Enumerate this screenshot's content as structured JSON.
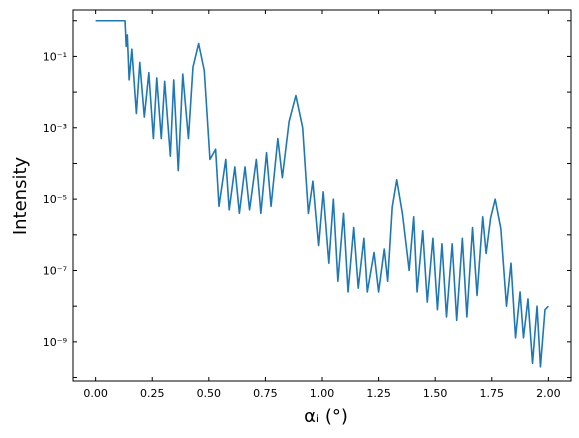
{
  "chart_data": {
    "type": "line",
    "x_label": "αᵢ (°)",
    "y_label": "Intensity",
    "x": [
      0,
      0.12,
      0.13,
      0.135,
      0.14,
      0.148,
      0.16,
      0.18,
      0.195,
      0.215,
      0.235,
      0.255,
      0.27,
      0.29,
      0.305,
      0.33,
      0.345,
      0.365,
      0.385,
      0.41,
      0.43,
      0.455,
      0.48,
      0.505,
      0.53,
      0.545,
      0.575,
      0.59,
      0.615,
      0.635,
      0.66,
      0.68,
      0.71,
      0.73,
      0.755,
      0.775,
      0.805,
      0.825,
      0.855,
      0.885,
      0.915,
      0.94,
      0.96,
      0.985,
      1.005,
      1.03,
      1.05,
      1.07,
      1.095,
      1.115,
      1.14,
      1.16,
      1.185,
      1.2,
      1.23,
      1.25,
      1.275,
      1.29,
      1.31,
      1.33,
      1.355,
      1.385,
      1.405,
      1.42,
      1.445,
      1.465,
      1.49,
      1.51,
      1.53,
      1.55,
      1.575,
      1.595,
      1.62,
      1.64,
      1.665,
      1.685,
      1.71,
      1.725,
      1.745,
      1.765,
      1.79,
      1.815,
      1.835,
      1.855,
      1.875,
      1.89,
      1.91,
      1.93,
      1.95,
      1.965,
      1.985,
      2.0
    ],
    "series": [
      {
        "color": "#1f77b4",
        "values": [
          1.0,
          1.0,
          1.0,
          0.19,
          0.4,
          0.022,
          0.16,
          0.0025,
          0.068,
          0.002,
          0.035,
          0.0005,
          0.025,
          0.0005,
          0.02,
          0.00016,
          0.022,
          6.3e-05,
          0.032,
          0.0005,
          0.05,
          0.23,
          0.04,
          0.00013,
          0.00025,
          6.3e-06,
          0.00013,
          5e-06,
          8e-05,
          4e-06,
          8e-05,
          5e-06,
          0.00013,
          4e-06,
          0.0002,
          6.3e-06,
          0.0005,
          4e-05,
          0.0015,
          0.008,
          0.001,
          4e-06,
          3.2e-05,
          5e-07,
          1.6e-05,
          1.6e-07,
          1e-05,
          5e-08,
          4e-06,
          2.5e-08,
          1.6e-06,
          3.2e-08,
          8e-07,
          2.5e-08,
          3.2e-07,
          2.5e-08,
          4e-07,
          5e-08,
          6e-06,
          3.5e-05,
          4e-06,
          1e-07,
          3.2e-06,
          2.5e-08,
          1.3e-06,
          1.3e-08,
          8e-07,
          8e-09,
          5.6e-07,
          5e-09,
          5.6e-07,
          4e-09,
          8e-07,
          5e-09,
          1.6e-06,
          2e-08,
          3.2e-06,
          3e-07,
          3e-06,
          1e-05,
          1.5e-06,
          1e-08,
          1.6e-07,
          1.3e-09,
          2.5e-08,
          1.3e-09,
          1.6e-08,
          2.5e-10,
          1e-08,
          2e-10,
          8e-09,
          1e-08
        ]
      }
    ],
    "xlim": [
      -0.1,
      2.1
    ],
    "xticks": [
      {
        "value": 0,
        "label": "0.00"
      },
      {
        "value": 0.25,
        "label": "0.25"
      },
      {
        "value": 0.5,
        "label": "0.50"
      },
      {
        "value": 0.75,
        "label": "0.75"
      },
      {
        "value": 1,
        "label": "1.00"
      },
      {
        "value": 1.25,
        "label": "1.25"
      },
      {
        "value": 1.5,
        "label": "1.50"
      },
      {
        "value": 1.75,
        "label": "1.75"
      },
      {
        "value": 2,
        "label": "2.00"
      }
    ],
    "ylim": [
      2,
      8e-11
    ],
    "yscale": "log",
    "yticks": [
      {
        "value": 0.1,
        "label": "10⁻¹"
      },
      {
        "value": 0.001,
        "label": "10⁻³"
      },
      {
        "value": 1e-05,
        "label": "10⁻⁵"
      },
      {
        "value": 1e-07,
        "label": "10⁻⁷"
      },
      {
        "value": 1e-09,
        "label": "10⁻⁹"
      }
    ],
    "yminorticks": [
      1,
      0.01,
      0.0001,
      1e-06,
      1e-08,
      1e-10
    ],
    "grid": false
  }
}
